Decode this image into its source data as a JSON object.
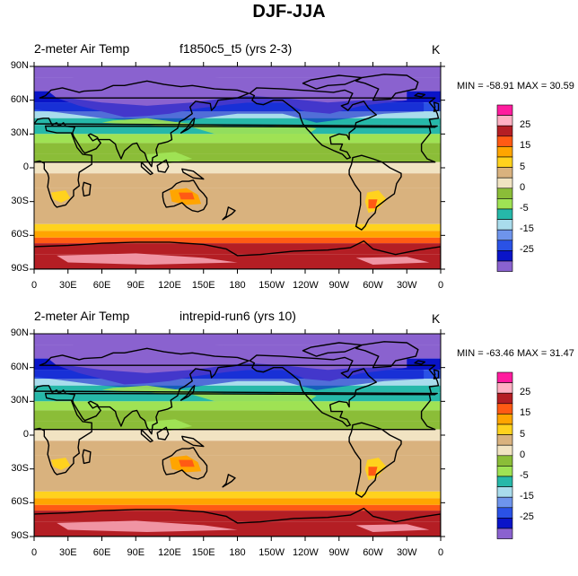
{
  "title": "DJF-JJA",
  "palette": [
    "#8a62cf",
    "#0a14c8",
    "#2a52e6",
    "#6e94ec",
    "#a9dcec",
    "#26b8a9",
    "#9fe254",
    "#8bbd38",
    "#f1e3c2",
    "#d9b27e",
    "#ffd21e",
    "#ffa500",
    "#ff5a14",
    "#b41e24",
    "#ffb1c3",
    "#ff1c9e"
  ],
  "ocean_color": "#d9b27e",
  "coast_color": "#000000",
  "chart_data": [
    {
      "type": "heatmap",
      "variable": "2-meter Air Temp",
      "case": "f1850c5_t5 (yrs 2-3)",
      "units": "K",
      "stats": "MIN = -58.91 MAX =  30.59",
      "xticks": [
        "0",
        "30E",
        "60E",
        "90E",
        "120E",
        "150E",
        "180",
        "150W",
        "120W",
        "90W",
        "60W",
        "30W",
        "0"
      ],
      "yticks": [
        "90N",
        "60N",
        "30N",
        "0",
        "30S",
        "60S",
        "90S"
      ],
      "xlim": [
        0,
        360
      ],
      "ylim": [
        -90,
        90
      ],
      "colorbar_labels": [
        "25",
        "15",
        "5",
        "0",
        "-5",
        "-15",
        "-25"
      ],
      "contour_levels": [
        -30,
        -25,
        -20,
        -15,
        -10,
        -5,
        -2,
        0,
        2,
        5,
        10,
        15,
        20,
        25,
        30
      ]
    },
    {
      "type": "heatmap",
      "variable": "2-meter Air Temp",
      "case": "intrepid-run6 (yrs 10)",
      "units": "K",
      "stats": "MIN = -63.46 MAX =  31.47",
      "xticks": [
        "0",
        "30E",
        "60E",
        "90E",
        "120E",
        "150E",
        "180",
        "150W",
        "120W",
        "90W",
        "60W",
        "30W",
        "0"
      ],
      "yticks": [
        "90N",
        "60N",
        "30N",
        "0",
        "30S",
        "60S",
        "90S"
      ],
      "xlim": [
        0,
        360
      ],
      "ylim": [
        -90,
        90
      ],
      "colorbar_labels": [
        "25",
        "15",
        "5",
        "0",
        "-5",
        "-15",
        "-25"
      ],
      "contour_levels": [
        -30,
        -25,
        -20,
        -15,
        -10,
        -5,
        -2,
        0,
        2,
        5,
        10,
        15,
        20,
        25,
        30
      ]
    }
  ]
}
